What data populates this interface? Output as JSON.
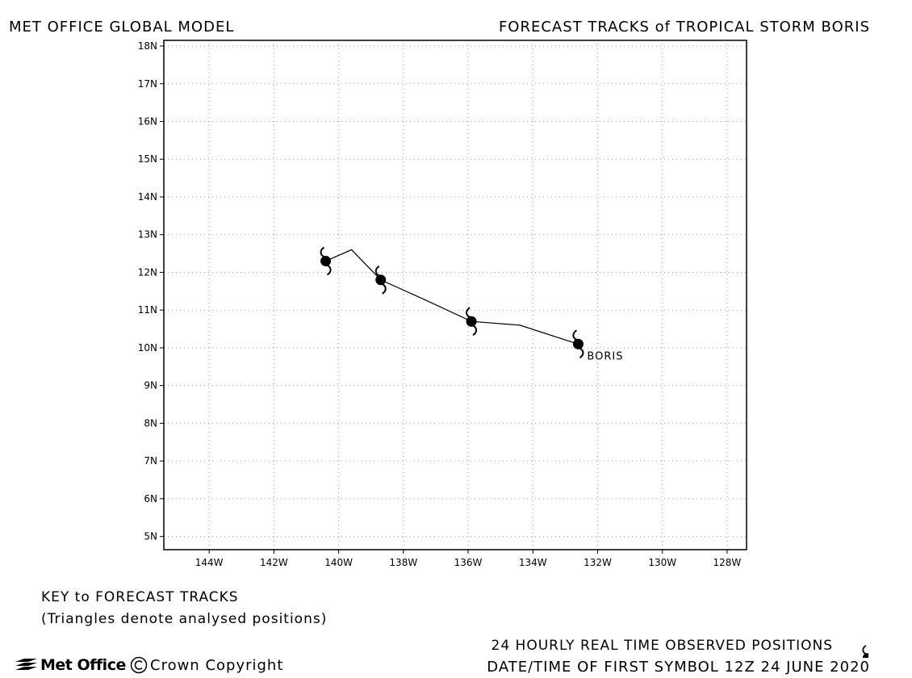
{
  "header": {
    "left_title": "MET OFFICE GLOBAL MODEL",
    "right_title": "FORECAST TRACKS of TROPICAL STORM BORIS"
  },
  "map": {
    "lon_range": [
      -145.4,
      -127.4
    ],
    "lat_range": [
      4.65,
      18.15
    ],
    "lon_ticks": [
      {
        "value": -144,
        "label": "144W"
      },
      {
        "value": -142,
        "label": "142W"
      },
      {
        "value": -140,
        "label": "140W"
      },
      {
        "value": -138,
        "label": "138W"
      },
      {
        "value": -136,
        "label": "136W"
      },
      {
        "value": -134,
        "label": "134W"
      },
      {
        "value": -132,
        "label": "132W"
      },
      {
        "value": -130,
        "label": "130W"
      },
      {
        "value": -128,
        "label": "128W"
      }
    ],
    "lat_ticks": [
      {
        "value": 5,
        "label": "5N"
      },
      {
        "value": 6,
        "label": "6N"
      },
      {
        "value": 7,
        "label": "7N"
      },
      {
        "value": 8,
        "label": "8N"
      },
      {
        "value": 9,
        "label": "9N"
      },
      {
        "value": 10,
        "label": "10N"
      },
      {
        "value": 11,
        "label": "11N"
      },
      {
        "value": 12,
        "label": "12N"
      },
      {
        "value": 13,
        "label": "13N"
      },
      {
        "value": 14,
        "label": "14N"
      },
      {
        "value": 15,
        "label": "15N"
      },
      {
        "value": 16,
        "label": "16N"
      },
      {
        "value": 17,
        "label": "17N"
      },
      {
        "value": 18,
        "label": "18N"
      }
    ],
    "grid": true,
    "storm": {
      "name": "BORIS",
      "track": [
        {
          "lon": -132.6,
          "lat": 10.1
        },
        {
          "lon": -134.4,
          "lat": 10.6
        },
        {
          "lon": -135.9,
          "lat": 10.7
        },
        {
          "lon": -137.4,
          "lat": 11.3
        },
        {
          "lon": -138.7,
          "lat": 11.8
        },
        {
          "lon": -139.6,
          "lat": 12.6
        },
        {
          "lon": -140.4,
          "lat": 12.3
        }
      ],
      "observed_positions": [
        {
          "lon": -132.6,
          "lat": 10.1
        },
        {
          "lon": -135.9,
          "lat": 10.7
        },
        {
          "lon": -138.7,
          "lat": 11.8
        },
        {
          "lon": -140.4,
          "lat": 12.3
        }
      ]
    }
  },
  "key": {
    "title": "KEY to FORECAST TRACKS",
    "note": "(Triangles denote analysed positions)"
  },
  "footer": {
    "logo": "Met Office",
    "copyright": "Crown Copyright",
    "observed_label": "24 HOURLY REAL TIME OBSERVED POSITIONS",
    "datetime_label": "DATE/TIME OF FIRST SYMBOL 12Z 24 JUNE 2020"
  },
  "icons": {
    "storm_symbol": "tropical-storm-symbol-icon",
    "logo_mark": "met-office-wave-icon",
    "copyright_mark": "copyright-icon"
  }
}
